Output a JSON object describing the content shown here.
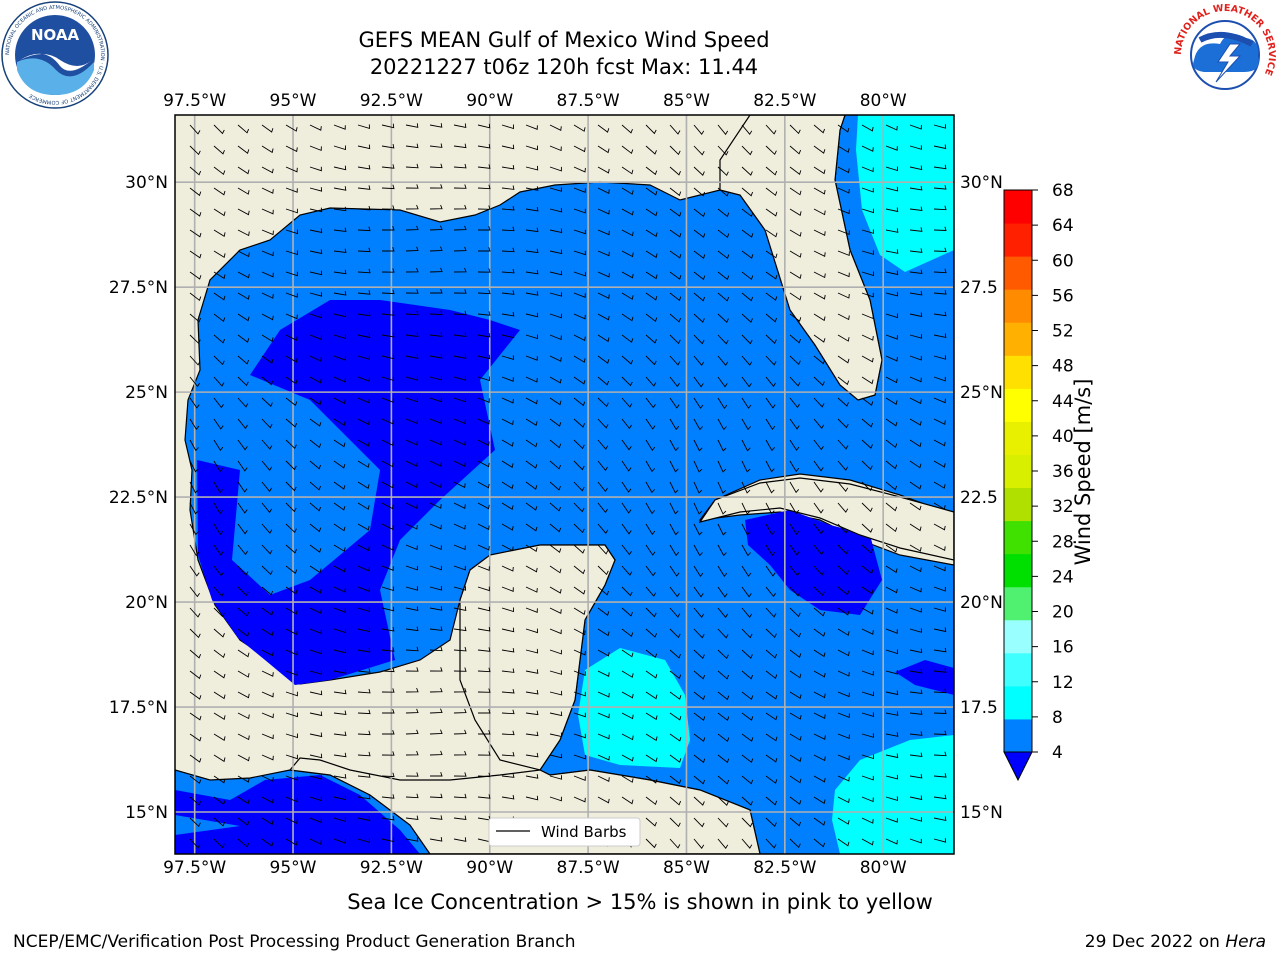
{
  "title": {
    "line1": "GEFS MEAN Gulf of Mexico Wind Speed",
    "line2": "20221227 t06z 120h fcst   Max: 11.44"
  },
  "map": {
    "lon_labels": [
      "97.5°W",
      "95°W",
      "92.5°W",
      "90°W",
      "87.5°W",
      "85°W",
      "82.5°W",
      "80°W"
    ],
    "lon_values": [
      -97.5,
      -95,
      -92.5,
      -90,
      -87.5,
      -85,
      -82.5,
      -80
    ],
    "lat_labels_left": [
      "30°N",
      "27.5°N",
      "25°N",
      "22.5°N",
      "20°N",
      "17.5°N",
      "15°N"
    ],
    "lat_labels_right": [
      "30°N",
      "27.5",
      "25°N",
      "22.5",
      "20°N",
      "17.5",
      "15°N"
    ],
    "lat_values": [
      30,
      27.5,
      25,
      22.5,
      20,
      17.5,
      15
    ],
    "extent": {
      "lon_min": -98,
      "lon_max": -78.2,
      "lat_min": 14,
      "lat_max": 31.6
    },
    "legend_label": "Wind Barbs",
    "land_color": "#efeddc",
    "sea_color": "#0080ff",
    "calm_color": "#0000ff",
    "fresh_color": "#00ffff",
    "grid": true
  },
  "colorbar": {
    "label": "Wind Speed [m/s]",
    "ticks": [
      "4",
      "8",
      "12",
      "16",
      "20",
      "24",
      "28",
      "32",
      "36",
      "40",
      "44",
      "48",
      "52",
      "56",
      "60",
      "64",
      "68"
    ],
    "under_color": "#0000ff",
    "colors": [
      "#0080ff",
      "#00ffff",
      "#40ffff",
      "#99ffff",
      "#50f070",
      "#00e000",
      "#40e000",
      "#b0e000",
      "#d8f000",
      "#e8f000",
      "#ffff00",
      "#ffe000",
      "#ffb000",
      "#ff8c00",
      "#ff5a00",
      "#ff2000",
      "#ff0000"
    ]
  },
  "caption": "Sea Ice Concentration > 15% is shown in pink to yellow",
  "footer": {
    "left": "NCEP/EMC/Verification Post Processing Product Generation Branch",
    "right_date": "29 Dec 2022 on ",
    "right_machine": "Hera"
  },
  "logos": {
    "noaa_text": "NOAA",
    "noaa_ring": "NATIONAL OCEANIC AND ATMOSPHERIC ADMINISTRATION · U.S. DEPARTMENT OF COMMERCE",
    "nws_ring": "NATIONAL WEATHER SERVICE"
  }
}
